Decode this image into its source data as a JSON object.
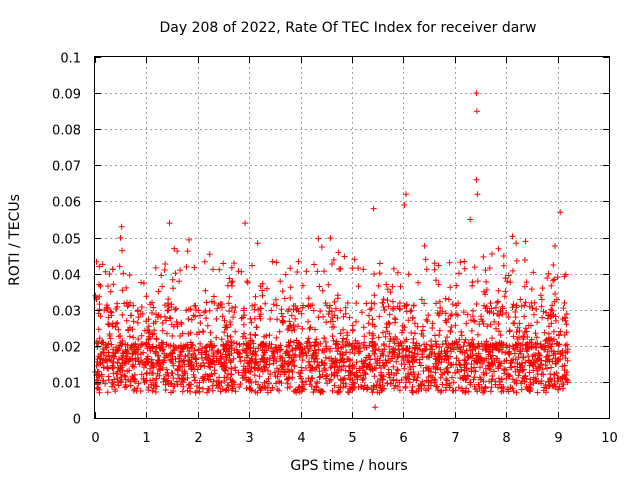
{
  "chart_data": {
    "type": "scatter",
    "title": "Day 208 of 2022, Rate Of TEC Index for receiver darw",
    "xlabel": "GPS time / hours",
    "ylabel": "ROTI / TECUs",
    "xlim": [
      0,
      10
    ],
    "ylim": [
      0,
      0.1
    ],
    "xticks": [
      "0",
      "1",
      "2",
      "3",
      "4",
      "5",
      "6",
      "7",
      "8",
      "9",
      "10"
    ],
    "yticks": [
      "0",
      "0.01",
      "0.02",
      "0.03",
      "0.04",
      "0.05",
      "0.06",
      "0.07",
      "0.08",
      "0.09",
      "0.1"
    ],
    "grid": true,
    "marker": "+",
    "color": "#ff0000",
    "series": [
      {
        "name": "ROTI",
        "x_range": [
          0,
          9.2
        ],
        "typical_range": [
          0.005,
          0.03
        ],
        "notable_points": [
          {
            "x": 0.52,
            "y": 0.053
          },
          {
            "x": 1.45,
            "y": 0.054
          },
          {
            "x": 2.92,
            "y": 0.054
          },
          {
            "x": 5.42,
            "y": 0.058
          },
          {
            "x": 6.05,
            "y": 0.062
          },
          {
            "x": 6.02,
            "y": 0.059
          },
          {
            "x": 7.3,
            "y": 0.055
          },
          {
            "x": 7.42,
            "y": 0.09
          },
          {
            "x": 7.43,
            "y": 0.085
          },
          {
            "x": 7.42,
            "y": 0.066
          },
          {
            "x": 7.44,
            "y": 0.062
          },
          {
            "x": 9.05,
            "y": 0.057
          },
          {
            "x": 5.45,
            "y": 0.003
          }
        ]
      }
    ]
  }
}
